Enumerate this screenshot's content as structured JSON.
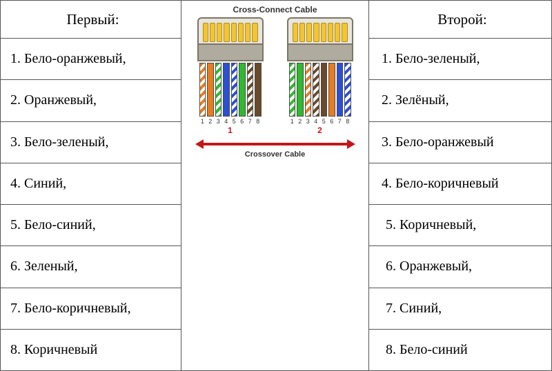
{
  "left": {
    "header": "Первый:",
    "rows": [
      "1.  Бело-оранжевый,",
      "2.  Оранжевый,",
      "3.  Бело-зеленый,",
      "4.  Синий,",
      "5.  Бело-синий,",
      "6.  Зеленый,",
      "7.  Бело-коричневый,",
      "8.  Коричневый"
    ]
  },
  "right": {
    "header": "Второй:",
    "rows": [
      "1.  Бело-зеленый,",
      "2.  Зелёный,",
      "3.  Бело-оранжевый",
      "4.  Бело-коричневый",
      "5.  Коричневый,",
      "6.  Оранжевый,",
      "7.  Синий,",
      "8.  Бело-синий"
    ]
  },
  "diagram": {
    "title_top": "Cross-Connect Cable",
    "title_bottom": "Crossover Cable",
    "end_labels": [
      "1",
      "2"
    ],
    "pin_numbers": [
      "1",
      "2",
      "3",
      "4",
      "5",
      "6",
      "7",
      "8"
    ],
    "colors": {
      "orange": "#e87c1e",
      "green": "#2dbb2d",
      "blue": "#2b4fd6",
      "brown": "#6b4a2a",
      "pin_gold": "#f2c531",
      "shell": "#e8e5dc",
      "shell_border": "#7a7565",
      "arrow": "#c41818"
    },
    "connectors": [
      {
        "wires": [
          {
            "type": "striped",
            "color": "orange"
          },
          {
            "type": "solid",
            "color": "orange"
          },
          {
            "type": "striped",
            "color": "green"
          },
          {
            "type": "solid",
            "color": "blue"
          },
          {
            "type": "striped",
            "color": "blue"
          },
          {
            "type": "solid",
            "color": "green"
          },
          {
            "type": "striped",
            "color": "brown"
          },
          {
            "type": "solid",
            "color": "brown"
          }
        ]
      },
      {
        "wires": [
          {
            "type": "striped",
            "color": "green"
          },
          {
            "type": "solid",
            "color": "green"
          },
          {
            "type": "striped",
            "color": "orange"
          },
          {
            "type": "striped",
            "color": "brown"
          },
          {
            "type": "solid",
            "color": "brown"
          },
          {
            "type": "solid",
            "color": "orange"
          },
          {
            "type": "solid",
            "color": "blue"
          },
          {
            "type": "striped",
            "color": "blue"
          }
        ]
      }
    ]
  }
}
